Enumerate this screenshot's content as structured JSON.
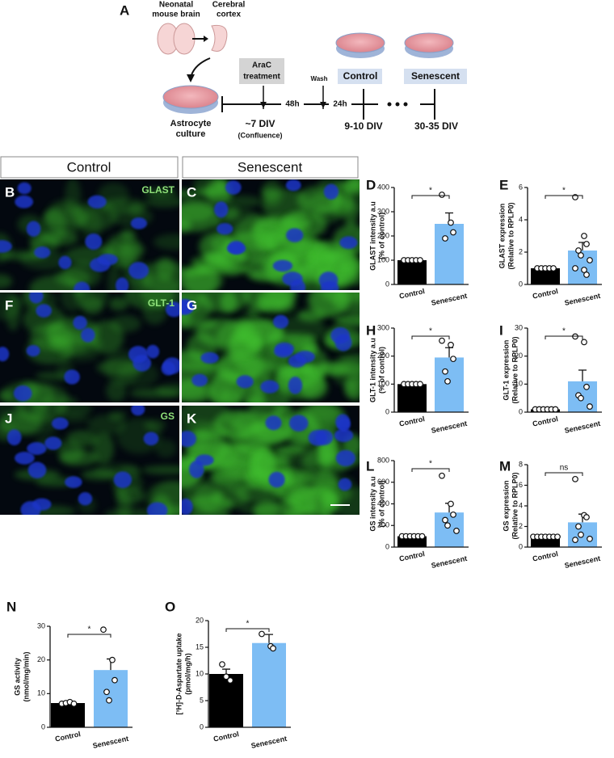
{
  "panel_a": {
    "letter": "A",
    "brain_label": [
      "Neonatal",
      "mouse brain"
    ],
    "cortex_label": [
      "Cerebral",
      "cortex"
    ],
    "culture_label": [
      "Astrocyte",
      "culture"
    ],
    "arac_label": [
      "AraC",
      "treatment"
    ],
    "wash_label": "Wash",
    "interval_1": "48h",
    "interval_2": "24h",
    "time_1": "~7 DIV",
    "time_1_note": "(Confluence)",
    "control_label": "Control",
    "senescent_label": "Senescent",
    "time_2": "9-10 DIV",
    "time_3": "30-35 DIV"
  },
  "images": {
    "headers": [
      "Control",
      "Senescent"
    ],
    "rows": [
      {
        "letters": [
          "B",
          "C"
        ],
        "marker": "GLAST"
      },
      {
        "letters": [
          "F",
          "G"
        ],
        "marker": "GLT-1"
      },
      {
        "letters": [
          "J",
          "K"
        ],
        "marker": "GS"
      }
    ]
  },
  "chart_data": [
    {
      "type": "bar",
      "panel": "D",
      "ylabel": [
        "GLAST intensity a.u",
        "(% of control)"
      ],
      "categories": [
        "Control",
        "Senescent"
      ],
      "values": [
        100,
        250
      ],
      "errors": [
        0,
        45
      ],
      "points": [
        [
          100,
          100,
          100,
          100,
          100
        ],
        [
          370,
          255,
          215,
          190
        ]
      ],
      "colors": [
        "#000000",
        "#7dbdf4"
      ],
      "significance": "*",
      "ylim": [
        0,
        400
      ],
      "yticks": [
        0,
        100,
        200,
        300,
        400
      ]
    },
    {
      "type": "bar",
      "panel": "E",
      "ylabel": [
        "GLAST expression",
        "(Relative to RPLP0)"
      ],
      "categories": [
        "Control",
        "Senescent"
      ],
      "values": [
        1,
        2.1
      ],
      "errors": [
        0,
        0.5
      ],
      "points": [
        [
          1,
          1,
          1,
          1,
          1
        ],
        [
          5.4,
          3.0,
          2.5,
          2.1,
          1.8,
          1.5,
          1.0,
          0.9,
          0.6
        ]
      ],
      "colors": [
        "#000000",
        "#7dbdf4"
      ],
      "significance": "*",
      "ylim": [
        0,
        6
      ],
      "yticks": [
        0,
        2,
        4,
        6
      ]
    },
    {
      "type": "bar",
      "panel": "H",
      "ylabel": [
        "GLT-1 intensity a.u",
        "(% of control)"
      ],
      "categories": [
        "Control",
        "Senescent"
      ],
      "values": [
        100,
        195
      ],
      "errors": [
        0,
        35
      ],
      "points": [
        [
          100,
          100,
          100,
          100,
          100
        ],
        [
          255,
          240,
          190,
          145,
          110
        ]
      ],
      "colors": [
        "#000000",
        "#7dbdf4"
      ],
      "significance": "*",
      "ylim": [
        0,
        300
      ],
      "yticks": [
        0,
        100,
        200,
        300
      ]
    },
    {
      "type": "bar",
      "panel": "I",
      "ylabel": [
        "GLT-1 expression",
        "(Relative to RPLP0)"
      ],
      "categories": [
        "Control",
        "Senescent"
      ],
      "values": [
        1,
        11
      ],
      "errors": [
        0,
        4
      ],
      "points": [
        [
          1,
          1,
          1,
          1,
          1,
          1
        ],
        [
          27,
          25,
          9,
          6,
          5,
          2
        ]
      ],
      "colors": [
        "#000000",
        "#7dbdf4"
      ],
      "significance": "*",
      "ylim": [
        0,
        30
      ],
      "yticks": [
        0,
        10,
        20,
        30
      ]
    },
    {
      "type": "bar",
      "panel": "L",
      "ylabel": [
        "GS intensity a.u",
        "(% of control)"
      ],
      "categories": [
        "Control",
        "Senescent"
      ],
      "values": [
        100,
        320
      ],
      "errors": [
        0,
        85
      ],
      "points": [
        [
          100,
          100,
          100,
          100,
          100,
          100
        ],
        [
          660,
          400,
          300,
          250,
          200,
          150
        ]
      ],
      "colors": [
        "#000000",
        "#7dbdf4"
      ],
      "significance": "*",
      "ylim": [
        0,
        800
      ],
      "yticks": [
        0,
        200,
        400,
        600,
        800
      ]
    },
    {
      "type": "bar",
      "panel": "M",
      "ylabel": [
        "GS expression",
        "(Relative to RPLP0)"
      ],
      "categories": [
        "Control",
        "Senescent"
      ],
      "values": [
        1,
        2.4
      ],
      "errors": [
        0,
        0.8
      ],
      "points": [
        [
          1,
          1,
          1,
          1,
          1,
          1,
          1
        ],
        [
          6.6,
          3.1,
          2.9,
          2.0,
          1.2,
          0.8,
          0.7
        ]
      ],
      "colors": [
        "#000000",
        "#7dbdf4"
      ],
      "significance": "ns",
      "ylim": [
        0,
        8
      ],
      "yticks": [
        0,
        2,
        4,
        6,
        8
      ]
    },
    {
      "type": "bar",
      "panel": "N",
      "ylabel": [
        "GS activity",
        "(nmol/mg/min)"
      ],
      "categories": [
        "Control",
        "Senescent"
      ],
      "values": [
        7.2,
        17
      ],
      "errors": [
        0.2,
        3.3
      ],
      "points": [
        [
          7,
          7.2,
          7.5,
          7
        ],
        [
          29,
          20,
          14,
          10.5,
          8
        ]
      ],
      "colors": [
        "#000000",
        "#7dbdf4"
      ],
      "significance": "*",
      "ylim": [
        0,
        30
      ],
      "yticks": [
        0,
        10,
        20,
        30
      ]
    },
    {
      "type": "bar",
      "panel": "O",
      "ylabel": [
        "[³H]-D-Aspartate uptake",
        "(pmol/mg/h)"
      ],
      "categories": [
        "Control",
        "Senescent"
      ],
      "values": [
        10,
        15.8
      ],
      "errors": [
        0.9,
        1.6
      ],
      "points": [
        [
          11.8,
          9.5,
          8.8
        ],
        [
          17.5,
          15.2,
          14.8
        ]
      ],
      "colors": [
        "#000000",
        "#7dbdf4"
      ],
      "significance": "*",
      "ylim": [
        0,
        20
      ],
      "yticks": [
        0,
        5,
        10,
        15,
        20
      ]
    }
  ]
}
